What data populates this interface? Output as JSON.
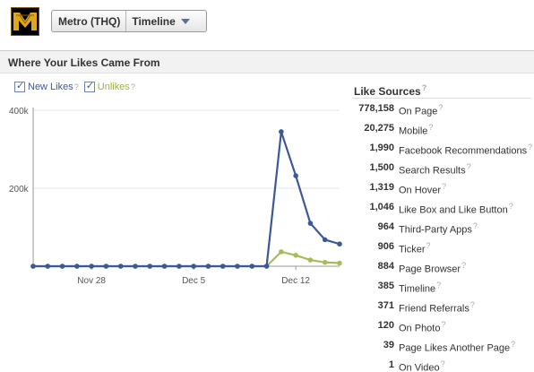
{
  "header": {
    "page_name": "Metro (THQ)",
    "view_label": "Timeline",
    "logo_icon": "metro-m-logo-icon"
  },
  "section": {
    "title": "Where Your Likes Came From"
  },
  "legend": {
    "new_likes": "New Likes",
    "unlikes": "Unlikes",
    "help_mark": "?"
  },
  "colors": {
    "new_likes": "#3b5998",
    "unlikes": "#a6bd5a",
    "grid": "#e3e3e3"
  },
  "chart_data": {
    "type": "line",
    "ylim": [
      0,
      400000
    ],
    "y_ticks": [
      {
        "value": 400000,
        "label": "400k"
      },
      {
        "value": 200000,
        "label": "200k"
      }
    ],
    "x_ticks": [
      {
        "index": 4,
        "label": "Nov 28"
      },
      {
        "index": 11,
        "label": "Dec 5"
      },
      {
        "index": 18,
        "label": "Dec 12"
      }
    ],
    "grid": true,
    "series": [
      {
        "name": "New Likes",
        "values": [
          0,
          0,
          0,
          0,
          0,
          0,
          0,
          0,
          0,
          0,
          0,
          0,
          0,
          0,
          0,
          0,
          0,
          345000,
          232000,
          110000,
          68000,
          57000
        ]
      },
      {
        "name": "Unlikes",
        "values": [
          0,
          0,
          0,
          0,
          0,
          0,
          0,
          0,
          0,
          0,
          0,
          0,
          0,
          0,
          0,
          0,
          0,
          37000,
          28000,
          16000,
          10000,
          8000
        ]
      }
    ]
  },
  "sources": {
    "title": "Like Sources",
    "items": [
      {
        "value": "778,158",
        "label": "On Page"
      },
      {
        "value": "20,275",
        "label": "Mobile"
      },
      {
        "value": "1,990",
        "label": "Facebook Recommendations"
      },
      {
        "value": "1,500",
        "label": "Search Results"
      },
      {
        "value": "1,319",
        "label": "On Hover"
      },
      {
        "value": "1,046",
        "label": "Like Box and Like Button"
      },
      {
        "value": "964",
        "label": "Third-Party Apps"
      },
      {
        "value": "906",
        "label": "Ticker"
      },
      {
        "value": "884",
        "label": "Page Browser"
      },
      {
        "value": "385",
        "label": "Timeline"
      },
      {
        "value": "371",
        "label": "Friend Referrals"
      },
      {
        "value": "120",
        "label": "On Photo"
      },
      {
        "value": "39",
        "label": "Page Likes Another Page"
      },
      {
        "value": "1",
        "label": "On Video"
      }
    ]
  }
}
